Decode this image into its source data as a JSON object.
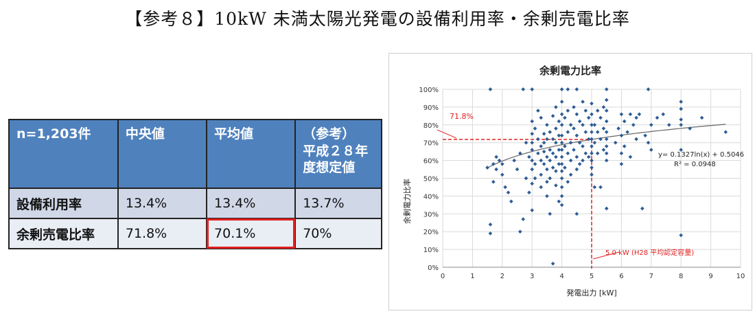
{
  "page": {
    "title": "【参考８】10kW 未満太陽光発電の設備利用率・余剰売電比率"
  },
  "table": {
    "headers": [
      "n=1,203件",
      "中央値",
      "平均値",
      "（参考）\n平成２８年\n度想定値"
    ],
    "rows": [
      {
        "label": "設備利用率",
        "values": [
          "13.4%",
          "13.4%",
          "13.7%"
        ]
      },
      {
        "label": "余剰売電比率",
        "values": [
          "71.8%",
          "70.1%",
          "70%"
        ]
      }
    ],
    "highlight_color": "#e02020"
  },
  "chart_data": {
    "type": "scatter",
    "title": "余剰電力比率",
    "xlabel": "発電出力 [kW]",
    "ylabel": "余剰電力比率",
    "xlim": [
      0,
      10
    ],
    "ylim": [
      0,
      100
    ],
    "x_ticks": [
      "0",
      "1",
      "2",
      "3",
      "4",
      "5",
      "6",
      "7",
      "8",
      "9",
      "10"
    ],
    "y_ticks": [
      "0%",
      "10%",
      "20%",
      "30%",
      "40%",
      "50%",
      "60%",
      "70%",
      "80%",
      "90%",
      "100%"
    ],
    "grid": true,
    "point_color": "#2e5d94",
    "trendline": {
      "equation": "y= 0.1327ln(x) + 0.5046",
      "r2": "R² = 0.0948",
      "a": 0.1327,
      "b": 0.5046,
      "x_from": 1.5,
      "x_to": 9.5
    },
    "reference_lines": {
      "y_value": 71.8,
      "y_label": "71.8%",
      "x_value": 5.0,
      "x_label": "5.0 kW (H28 平均認定容量)",
      "color": "#e02020"
    },
    "points": [
      [
        1.6,
        100
      ],
      [
        1.6,
        24
      ],
      [
        1.6,
        19
      ],
      [
        1.5,
        56
      ],
      [
        1.7,
        58
      ],
      [
        1.7,
        48
      ],
      [
        1.8,
        62
      ],
      [
        1.8,
        55
      ],
      [
        1.9,
        60
      ],
      [
        2.0,
        58
      ],
      [
        2.0,
        52
      ],
      [
        2.1,
        45
      ],
      [
        2.2,
        42
      ],
      [
        2.3,
        37
      ],
      [
        2.4,
        60
      ],
      [
        2.5,
        55
      ],
      [
        2.6,
        64
      ],
      [
        2.6,
        20
      ],
      [
        2.7,
        100
      ],
      [
        2.7,
        27
      ],
      [
        2.8,
        50
      ],
      [
        2.8,
        70
      ],
      [
        2.9,
        62
      ],
      [
        2.9,
        42
      ],
      [
        3.0,
        100
      ],
      [
        3.0,
        82
      ],
      [
        3.0,
        75
      ],
      [
        3.0,
        70
      ],
      [
        3.0,
        66
      ],
      [
        3.0,
        60
      ],
      [
        3.0,
        55
      ],
      [
        3.0,
        47
      ],
      [
        3.0,
        32
      ],
      [
        3.1,
        78
      ],
      [
        3.1,
        58
      ],
      [
        3.1,
        50
      ],
      [
        3.2,
        88
      ],
      [
        3.2,
        72
      ],
      [
        3.2,
        64
      ],
      [
        3.3,
        84
      ],
      [
        3.3,
        68
      ],
      [
        3.3,
        60
      ],
      [
        3.3,
        52
      ],
      [
        3.3,
        45
      ],
      [
        3.4,
        75
      ],
      [
        3.4,
        70
      ],
      [
        3.4,
        65
      ],
      [
        3.4,
        58
      ],
      [
        3.5,
        80
      ],
      [
        3.5,
        72
      ],
      [
        3.5,
        62
      ],
      [
        3.5,
        55
      ],
      [
        3.5,
        48
      ],
      [
        3.5,
        40
      ],
      [
        3.6,
        76
      ],
      [
        3.6,
        66
      ],
      [
        3.6,
        60
      ],
      [
        3.6,
        50
      ],
      [
        3.6,
        30
      ],
      [
        3.7,
        85
      ],
      [
        3.7,
        72
      ],
      [
        3.7,
        64
      ],
      [
        3.7,
        56
      ],
      [
        3.7,
        2
      ],
      [
        3.8,
        90
      ],
      [
        3.8,
        78
      ],
      [
        3.8,
        70
      ],
      [
        3.8,
        62
      ],
      [
        3.8,
        54
      ],
      [
        3.8,
        46
      ],
      [
        3.9,
        82
      ],
      [
        3.9,
        74
      ],
      [
        3.9,
        66
      ],
      [
        3.9,
        58
      ],
      [
        3.9,
        37
      ],
      [
        4.0,
        100
      ],
      [
        4.0,
        93
      ],
      [
        4.0,
        86
      ],
      [
        4.0,
        80
      ],
      [
        4.0,
        74
      ],
      [
        4.0,
        70
      ],
      [
        4.0,
        66
      ],
      [
        4.0,
        62
      ],
      [
        4.0,
        58
      ],
      [
        4.0,
        54
      ],
      [
        4.0,
        50
      ],
      [
        4.0,
        45
      ],
      [
        4.0,
        40
      ],
      [
        4.0,
        35
      ],
      [
        4.1,
        84
      ],
      [
        4.1,
        68
      ],
      [
        4.1,
        56
      ],
      [
        4.2,
        88
      ],
      [
        4.2,
        76
      ],
      [
        4.2,
        64
      ],
      [
        4.2,
        48
      ],
      [
        4.2,
        100
      ],
      [
        4.3,
        80
      ],
      [
        4.3,
        70
      ],
      [
        4.3,
        60
      ],
      [
        4.3,
        52
      ],
      [
        4.4,
        90
      ],
      [
        4.4,
        78
      ],
      [
        4.4,
        66
      ],
      [
        4.5,
        100
      ],
      [
        4.5,
        86
      ],
      [
        4.5,
        74
      ],
      [
        4.5,
        62
      ],
      [
        4.5,
        55
      ],
      [
        4.5,
        30
      ],
      [
        4.6,
        82
      ],
      [
        4.6,
        70
      ],
      [
        4.6,
        58
      ],
      [
        4.7,
        93
      ],
      [
        4.7,
        80
      ],
      [
        4.7,
        68
      ],
      [
        4.7,
        60
      ],
      [
        4.8,
        88
      ],
      [
        4.8,
        76
      ],
      [
        4.8,
        64
      ],
      [
        4.9,
        84
      ],
      [
        4.9,
        72
      ],
      [
        4.9,
        62
      ],
      [
        5.0,
        92
      ],
      [
        5.0,
        86
      ],
      [
        5.0,
        80
      ],
      [
        5.0,
        76
      ],
      [
        5.0,
        72
      ],
      [
        5.0,
        68
      ],
      [
        5.0,
        64
      ],
      [
        5.0,
        60
      ],
      [
        5.0,
        56
      ],
      [
        5.0,
        52
      ],
      [
        5.1,
        80
      ],
      [
        5.1,
        70
      ],
      [
        5.1,
        45
      ],
      [
        5.2,
        88
      ],
      [
        5.2,
        76
      ],
      [
        5.2,
        64
      ],
      [
        5.3,
        84
      ],
      [
        5.3,
        72
      ],
      [
        5.3,
        45
      ],
      [
        5.4,
        90
      ],
      [
        5.4,
        78
      ],
      [
        5.4,
        66
      ],
      [
        5.5,
        100
      ],
      [
        5.5,
        94
      ],
      [
        5.5,
        88
      ],
      [
        5.5,
        82
      ],
      [
        5.5,
        76
      ],
      [
        5.5,
        72
      ],
      [
        5.5,
        68
      ],
      [
        5.5,
        64
      ],
      [
        5.5,
        60
      ],
      [
        5.5,
        33
      ],
      [
        5.8,
        70
      ],
      [
        5.9,
        78
      ],
      [
        6.0,
        86
      ],
      [
        6.0,
        74
      ],
      [
        6.0,
        64
      ],
      [
        6.0,
        58
      ],
      [
        6.1,
        82
      ],
      [
        6.1,
        68
      ],
      [
        6.2,
        76
      ],
      [
        6.3,
        86
      ],
      [
        6.3,
        62
      ],
      [
        6.4,
        80
      ],
      [
        6.5,
        72
      ],
      [
        6.5,
        84
      ],
      [
        6.6,
        86
      ],
      [
        6.7,
        33
      ],
      [
        6.8,
        74
      ],
      [
        6.9,
        100
      ],
      [
        6.9,
        70
      ],
      [
        7.0,
        80
      ],
      [
        7.0,
        66
      ],
      [
        7.2,
        84
      ],
      [
        7.4,
        86
      ],
      [
        7.6,
        80
      ],
      [
        8.0,
        93
      ],
      [
        8.0,
        89
      ],
      [
        8.0,
        83
      ],
      [
        8.0,
        80
      ],
      [
        8.0,
        66
      ],
      [
        8.0,
        18
      ],
      [
        8.3,
        78
      ],
      [
        8.7,
        84
      ],
      [
        9.5,
        76
      ]
    ]
  }
}
